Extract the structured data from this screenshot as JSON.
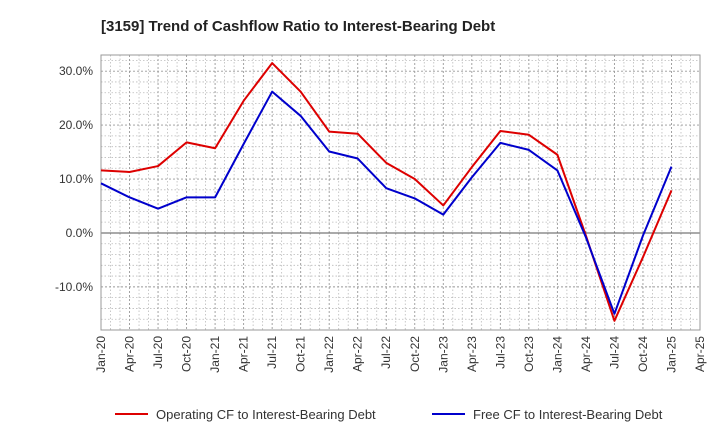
{
  "chart_data": {
    "type": "line",
    "title": "[3159]  Trend of Cashflow Ratio to Interest-Bearing Debt",
    "xlabel": "",
    "ylabel": "",
    "x_ticks": [
      "Jan-20",
      "Apr-20",
      "Jul-20",
      "Oct-20",
      "Jan-21",
      "Apr-21",
      "Jul-21",
      "Oct-21",
      "Jan-22",
      "Apr-22",
      "Jul-22",
      "Oct-22",
      "Jan-23",
      "Apr-23",
      "Jul-23",
      "Oct-23",
      "Jan-24",
      "Apr-24",
      "Jul-24",
      "Oct-24",
      "Jan-25",
      "Apr-25"
    ],
    "y_ticks": [
      {
        "value": 30,
        "label": "30.0%"
      },
      {
        "value": 20,
        "label": "20.0%"
      },
      {
        "value": 10,
        "label": "10.0%"
      },
      {
        "value": 0,
        "label": "0.0%"
      },
      {
        "value": -10,
        "label": "-10.0%"
      }
    ],
    "ylim": [
      -18,
      33
    ],
    "grid": true,
    "legend_position": "bottom",
    "series": [
      {
        "name": "Operating CF to Interest-Bearing Debt",
        "color": "#dd0000",
        "points": [
          [
            "Jan-20",
            11.6
          ],
          [
            "Apr-20",
            11.3
          ],
          [
            "Jul-20",
            12.4
          ],
          [
            "Oct-20",
            16.8
          ],
          [
            "Jan-21",
            15.7
          ],
          [
            "Apr-21",
            24.5
          ],
          [
            "Jul-21",
            31.5
          ],
          [
            "Oct-21",
            26.2
          ],
          [
            "Jan-22",
            18.8
          ],
          [
            "Apr-22",
            18.4
          ],
          [
            "Jul-22",
            13.0
          ],
          [
            "Oct-22",
            10.0
          ],
          [
            "Jan-23",
            5.1
          ],
          [
            "Apr-23",
            12.2
          ],
          [
            "Jul-23",
            18.9
          ],
          [
            "Oct-23",
            18.2
          ],
          [
            "Jan-24",
            14.5
          ],
          [
            "Apr-24",
            -0.5
          ],
          [
            "Jul-24",
            -16.3
          ],
          [
            "Oct-24",
            -4.5
          ],
          [
            "Jan-25",
            7.9
          ]
        ]
      },
      {
        "name": "Free CF to Interest-Bearing Debt",
        "color": "#0000cc",
        "points": [
          [
            "Jan-20",
            9.2
          ],
          [
            "Apr-20",
            6.6
          ],
          [
            "Jul-20",
            4.5
          ],
          [
            "Oct-20",
            6.6
          ],
          [
            "Jan-21",
            6.6
          ],
          [
            "Apr-21",
            16.5
          ],
          [
            "Jul-21",
            26.2
          ],
          [
            "Oct-21",
            21.7
          ],
          [
            "Jan-22",
            15.1
          ],
          [
            "Apr-22",
            13.8
          ],
          [
            "Jul-22",
            8.3
          ],
          [
            "Oct-22",
            6.4
          ],
          [
            "Jan-23",
            3.4
          ],
          [
            "Apr-23",
            10.3
          ],
          [
            "Jul-23",
            16.7
          ],
          [
            "Oct-23",
            15.4
          ],
          [
            "Jan-24",
            11.6
          ],
          [
            "Apr-24",
            -0.8
          ],
          [
            "Jul-24",
            -15.0
          ],
          [
            "Oct-24",
            -0.5
          ],
          [
            "Jan-25",
            12.3
          ]
        ]
      }
    ]
  }
}
